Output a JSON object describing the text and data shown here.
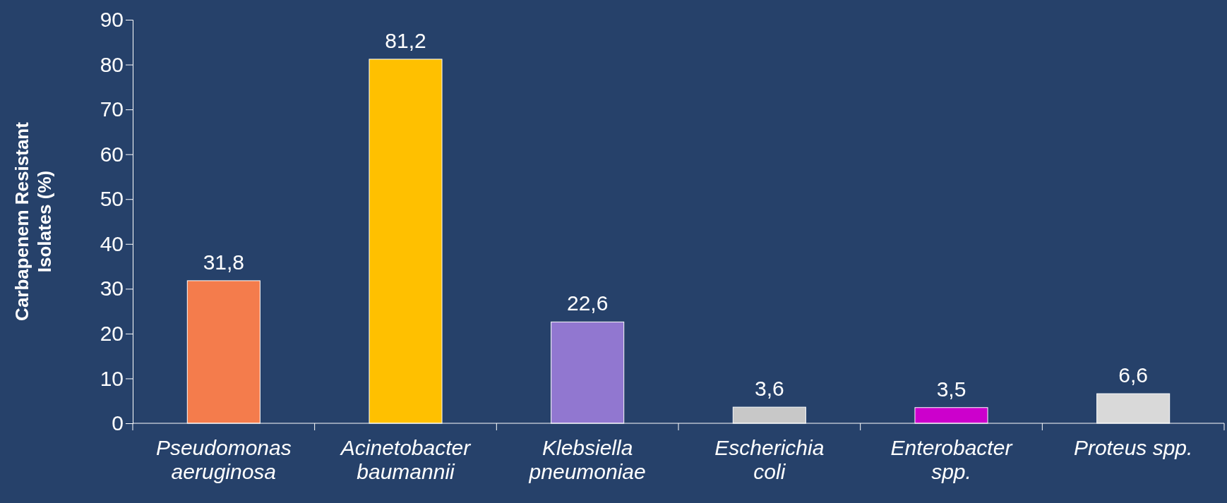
{
  "chart_data": {
    "type": "bar",
    "ylabel": "Carbapenem Resistant Isolates (%)",
    "categories": [
      "Pseudomonas aeruginosa",
      "Acinetobacter baumannii",
      "Klebsiella pneumoniae",
      "Escherichia coli",
      "Enterobacter spp.",
      "Proteus spp."
    ],
    "values": [
      31.8,
      81.2,
      22.6,
      3.6,
      3.5,
      6.6
    ],
    "colors": [
      "#f47c4c",
      "#ffc000",
      "#9177d0",
      "#c8c8c8",
      "#cc00cc",
      "#d9d9d9"
    ],
    "value_labels": [
      "31,8",
      "81,2",
      "22,6",
      "3,6",
      "3,5",
      "6,6"
    ],
    "ylim": [
      0,
      90
    ],
    "yticks": [
      0,
      10,
      20,
      30,
      40,
      50,
      60,
      70,
      80,
      90
    ],
    "grid": false
  }
}
